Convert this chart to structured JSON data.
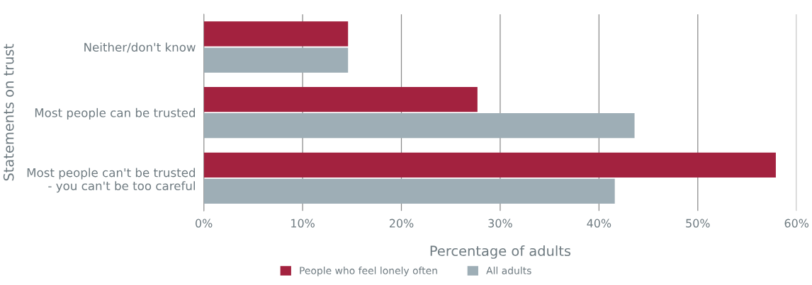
{
  "chart_data": {
    "type": "bar",
    "orientation": "horizontal",
    "xlabel": "Percentage of adults",
    "ylabel": "Statements on trust",
    "categories": [
      "Neither/don't know",
      "Most people can be trusted",
      "Most people can't be trusted\n- you can't be too careful"
    ],
    "series": [
      {
        "name": "People who feel lonely often",
        "color": "#a3223f",
        "values": [
          14.6,
          27.7,
          57.9
        ]
      },
      {
        "name": "All adults",
        "color": "#9eaeb6",
        "values": [
          14.6,
          43.6,
          41.6
        ]
      }
    ],
    "xlim": [
      0,
      60
    ],
    "xticks": [
      {
        "value": 0,
        "label": "0%"
      },
      {
        "value": 10,
        "label": "10%"
      },
      {
        "value": 20,
        "label": "20%"
      },
      {
        "value": 30,
        "label": "30%"
      },
      {
        "value": 40,
        "label": "40%"
      },
      {
        "value": 50,
        "label": "50%"
      },
      {
        "value": 60,
        "label": "60%"
      }
    ],
    "grid": "x",
    "legend": "bottom"
  }
}
